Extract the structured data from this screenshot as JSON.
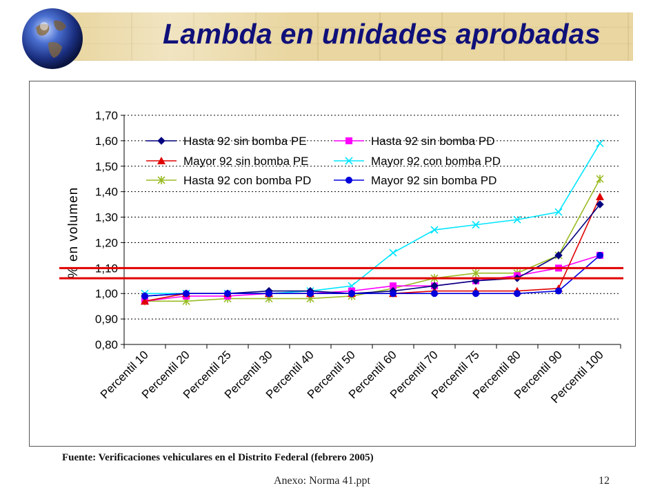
{
  "slide": {
    "title": "Lambda en unidades aprobadas",
    "source": "Fuente: Verificaciones vehiculares en el Distrito Federal (febrero 2005)",
    "footer": "Anexo: Norma 41.ppt",
    "page_number": "12"
  },
  "chart_data": {
    "type": "line",
    "ylabel": "% en volumen",
    "xlabel": "",
    "ylim": [
      0.8,
      1.7
    ],
    "yticks": [
      "0,80",
      "0,90",
      "1,00",
      "1,10",
      "1,20",
      "1,30",
      "1,40",
      "1,50",
      "1,60",
      "1,70"
    ],
    "grid": "horizontal dashed",
    "legend_position": "top-left inside",
    "categories": [
      "Percentil 10",
      "Percentil 20",
      "Percentil 25",
      "Percentil 30",
      "Percentil 40",
      "Percentil 50",
      "Percentil 60",
      "Percentil 70",
      "Percentil 75",
      "Percentil 80",
      "Percentil 90",
      "Percentil 100"
    ],
    "reference_lines": [
      {
        "value": 1.1,
        "color": "#e00000"
      },
      {
        "value": 1.06,
        "color": "#e00000"
      }
    ],
    "series": [
      {
        "name": "Hasta 92 sin bomba PE",
        "color": "#000080",
        "marker": "diamond",
        "values": [
          0.99,
          1.0,
          1.0,
          1.01,
          1.01,
          1.0,
          1.01,
          1.03,
          1.05,
          1.06,
          1.15,
          1.35
        ]
      },
      {
        "name": "Hasta 92 sin bomba PD",
        "color": "#ff00ff",
        "marker": "square",
        "values": [
          0.97,
          0.99,
          0.99,
          1.0,
          1.0,
          1.01,
          1.03,
          1.03,
          1.05,
          1.07,
          1.1,
          1.15
        ]
      },
      {
        "name": "Mayor 92 sin bomba PE",
        "color": "#e00000",
        "marker": "triangle",
        "values": [
          0.97,
          1.0,
          1.0,
          1.0,
          1.0,
          1.0,
          1.0,
          1.01,
          1.01,
          1.01,
          1.02,
          1.38
        ]
      },
      {
        "name": "Mayor 92 con bomba PD",
        "color": "#00e5ff",
        "marker": "x",
        "values": [
          1.0,
          1.0,
          1.0,
          1.0,
          1.01,
          1.03,
          1.16,
          1.25,
          1.27,
          1.29,
          1.32,
          1.59
        ]
      },
      {
        "name": "Hasta 92 con bomba PD",
        "color": "#99bb22",
        "marker": "star",
        "values": [
          0.97,
          0.97,
          0.98,
          0.98,
          0.98,
          0.99,
          1.02,
          1.06,
          1.08,
          1.08,
          1.15,
          1.45
        ]
      },
      {
        "name": "Mayor 92 sin bomba PD",
        "color": "#0000dd",
        "marker": "circle",
        "values": [
          0.99,
          1.0,
          1.0,
          1.0,
          1.0,
          1.0,
          1.0,
          1.0,
          1.0,
          1.0,
          1.01,
          1.15
        ]
      }
    ]
  }
}
